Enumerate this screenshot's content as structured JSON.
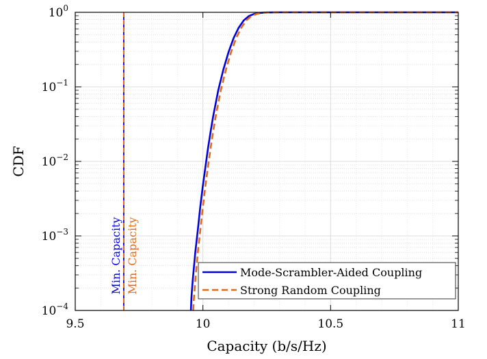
{
  "chart_data": {
    "type": "line",
    "title": "",
    "xlabel": "Capacity (b/s/Hz)",
    "ylabel": "CDF",
    "xlim": [
      9.5,
      11
    ],
    "ylim": [
      0.0001,
      1
    ],
    "yscale": "log",
    "grid": true,
    "legend_position": "bottom-right",
    "x_ticks": [
      9.5,
      10,
      10.5,
      11
    ],
    "x_tick_labels": [
      "9.5",
      "10",
      "10.5",
      "11"
    ],
    "y_ticks": [
      0.0001,
      0.001,
      0.01,
      0.1,
      1
    ],
    "y_tick_labels": [
      {
        "base": "10",
        "exp": "−4"
      },
      {
        "base": "10",
        "exp": "−3"
      },
      {
        "base": "10",
        "exp": "−2"
      },
      {
        "base": "10",
        "exp": "−1"
      },
      {
        "base": "10",
        "exp": "0"
      }
    ],
    "series": [
      {
        "name": "Mode-Scrambler-Aided Coupling",
        "color": "#0000dd",
        "style": "solid",
        "x": [
          9.953,
          9.955,
          9.96,
          9.97,
          9.98,
          9.99,
          10.0,
          10.01,
          10.02,
          10.03,
          10.04,
          10.06,
          10.08,
          10.1,
          10.12,
          10.14,
          10.16,
          10.18,
          10.2,
          10.22,
          10.25,
          10.3,
          10.5,
          11.0
        ],
        "y": [
          0.0001,
          0.00015,
          0.00025,
          0.0006,
          0.0012,
          0.0025,
          0.0048,
          0.0085,
          0.015,
          0.025,
          0.04,
          0.09,
          0.17,
          0.29,
          0.45,
          0.62,
          0.78,
          0.89,
          0.95,
          0.98,
          0.995,
          1.0,
          1.0,
          1.0
        ]
      },
      {
        "name": "Strong Random Coupling",
        "color": "#e06a1a",
        "style": "dashed",
        "x": [
          9.962,
          9.965,
          9.97,
          9.98,
          9.99,
          10.0,
          10.01,
          10.02,
          10.03,
          10.04,
          10.05,
          10.07,
          10.09,
          10.11,
          10.13,
          10.15,
          10.17,
          10.19,
          10.21,
          10.23,
          10.26,
          10.3,
          10.5,
          11.0
        ],
        "y": [
          0.0001,
          0.00015,
          0.00025,
          0.0006,
          0.0012,
          0.0025,
          0.0048,
          0.0085,
          0.015,
          0.025,
          0.04,
          0.09,
          0.17,
          0.29,
          0.45,
          0.62,
          0.78,
          0.89,
          0.95,
          0.98,
          0.995,
          1.0,
          1.0,
          1.0
        ]
      }
    ],
    "annotations": [
      {
        "text": "Min. Capacity",
        "x": 9.69,
        "color": "#0000dd",
        "side": "left",
        "line_style": "solid"
      },
      {
        "text": "Min. Capacity",
        "x": 9.69,
        "color": "#e06a1a",
        "side": "right",
        "line_style": "dashed"
      }
    ]
  }
}
